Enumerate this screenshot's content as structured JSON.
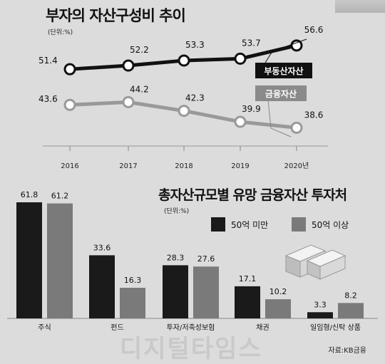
{
  "titles": {
    "line_title": "부자의 자산구성비 추이",
    "line_unit": "(단위:%)",
    "bar_title": "총자산규모별 유망 금융자산 투자처",
    "bar_unit": "(단위:%)",
    "source": "자료:KB금융",
    "watermark": "디지털타임스"
  },
  "chart_data": [
    {
      "type": "line",
      "title": "부자의 자산구성비 추이",
      "unit": "(단위:%)",
      "x": [
        "2016",
        "2017",
        "2018",
        "2019",
        "2020년"
      ],
      "series": [
        {
          "name": "부동산자산",
          "values": [
            51.4,
            52.2,
            53.3,
            53.7,
            56.6
          ],
          "color": "#111111"
        },
        {
          "name": "금융자산",
          "values": [
            43.6,
            44.2,
            42.3,
            39.9,
            38.6
          ],
          "color": "#999999"
        }
      ],
      "ylim": [
        36,
        60
      ],
      "grid": false
    },
    {
      "type": "bar",
      "title": "총자산규모별 유망 금융자산 투자처",
      "unit": "(단위:%)",
      "categories": [
        "주식",
        "펀드",
        "투자/저축성보험",
        "채권",
        "일임형/신탁 상품"
      ],
      "series": [
        {
          "name": "50억 미만",
          "values": [
            61.8,
            33.6,
            28.3,
            17.1,
            3.3
          ],
          "color": "#1a1a1a"
        },
        {
          "name": "50억 이상",
          "values": [
            61.2,
            16.3,
            27.6,
            10.2,
            8.2
          ],
          "color": "#7a7a7a"
        }
      ],
      "ylim": [
        0,
        62
      ],
      "legend": "top-right"
    }
  ]
}
